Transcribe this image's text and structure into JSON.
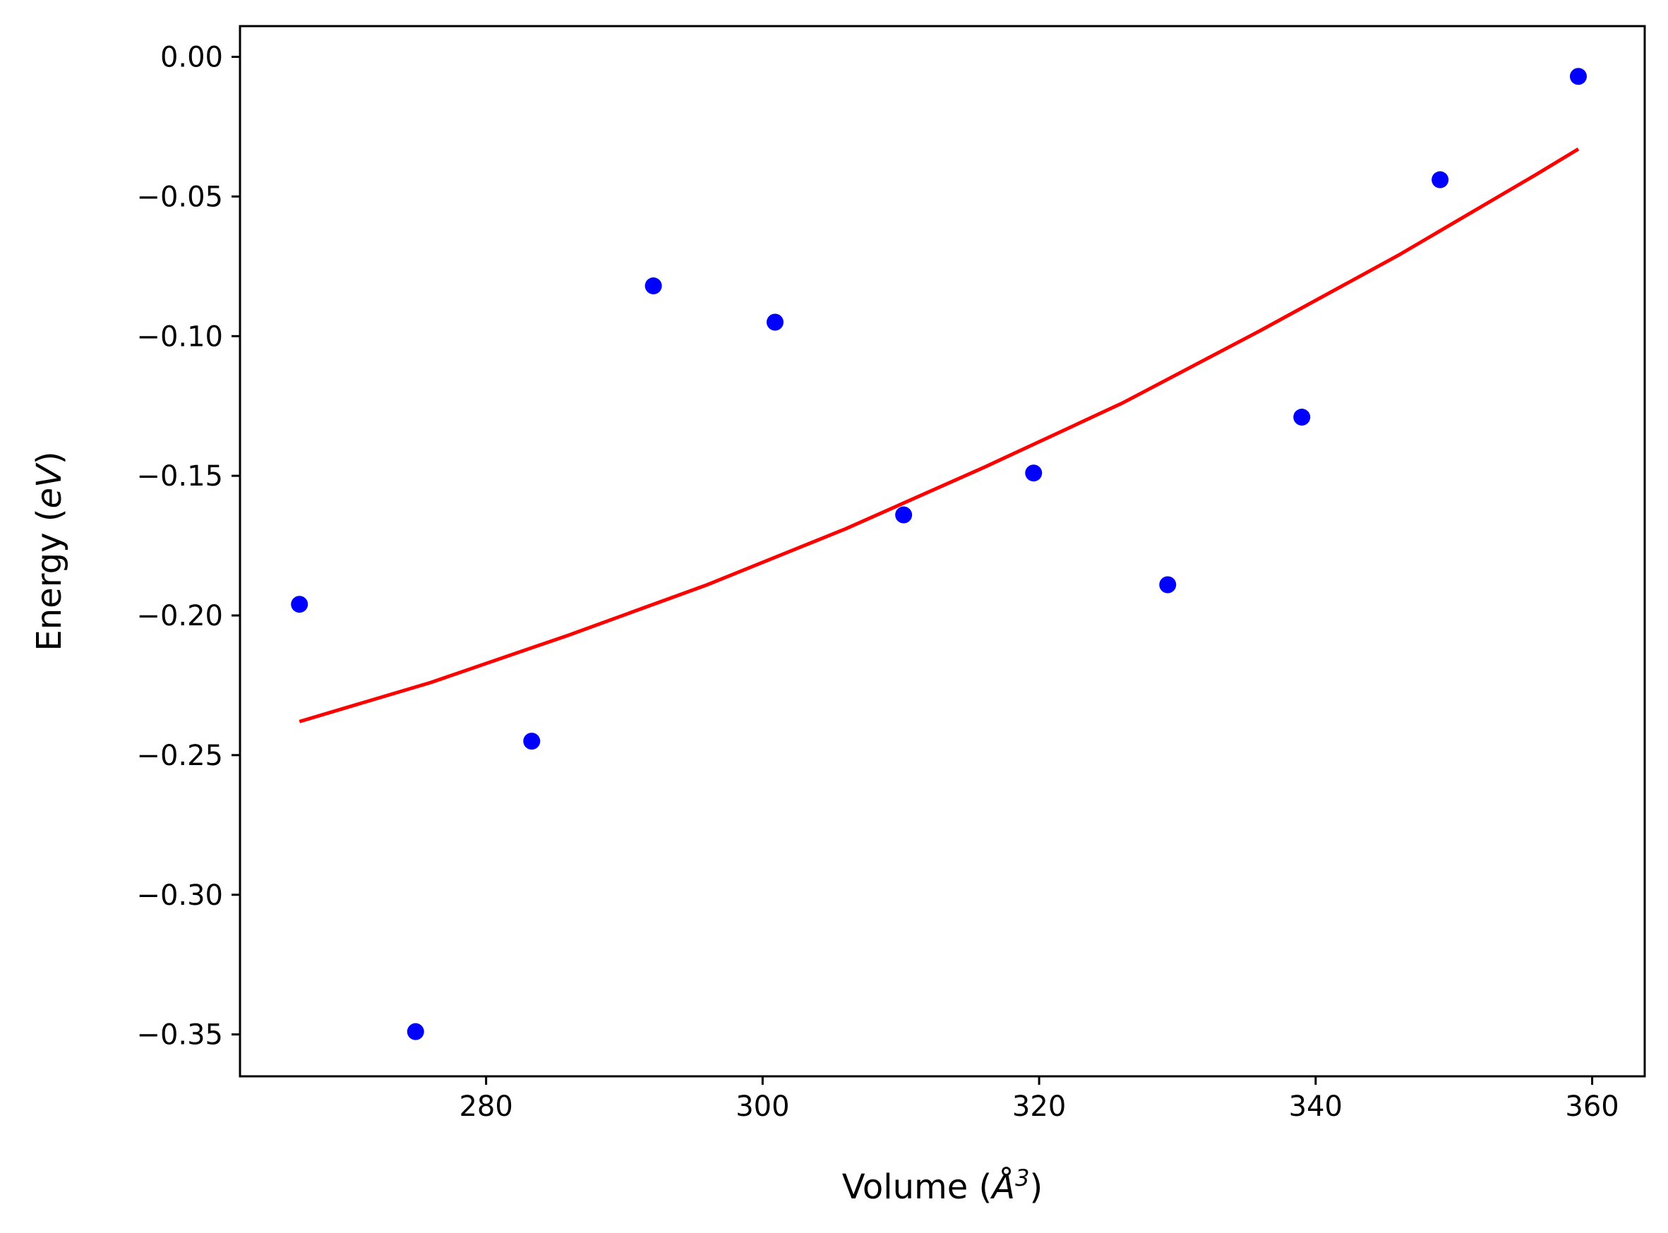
{
  "chart_data": {
    "type": "scatter",
    "xlabel": "Volume (Å³)",
    "ylabel": "Energy (eV)",
    "xlabel_parts": {
      "pre": "Volume (",
      "sym": "Å",
      "sup": "3",
      "post": ")"
    },
    "ylabel_parts": {
      "pre": "Energy (",
      "unit": "eV",
      "post": ")"
    },
    "xlim": [
      262.2,
      363.8
    ],
    "ylim": [
      -0.365,
      0.011
    ],
    "x_ticks": [
      280,
      300,
      320,
      340,
      360
    ],
    "y_ticks": [
      0.0,
      -0.05,
      -0.1,
      -0.15,
      -0.2,
      -0.25,
      -0.3,
      -0.35
    ],
    "x_tick_labels": [
      "280",
      "300",
      "320",
      "340",
      "360"
    ],
    "y_tick_labels": [
      "0.00",
      "−0.05",
      "−0.10",
      "−0.15",
      "−0.20",
      "−0.25",
      "−0.30",
      "−0.35"
    ],
    "grid": false,
    "series": [
      {
        "type": "scatter",
        "color": "#0000ff",
        "x": [
          266.5,
          274.9,
          283.3,
          292.1,
          300.9,
          310.2,
          319.6,
          329.3,
          339.0,
          349.0,
          359.0
        ],
        "y": [
          -0.196,
          -0.349,
          -0.245,
          -0.082,
          -0.095,
          -0.164,
          -0.149,
          -0.189,
          -0.129,
          -0.044,
          -0.007
        ]
      },
      {
        "type": "line",
        "color": "#ff0000",
        "x": [
          266.5,
          276,
          286,
          296,
          306,
          316,
          326,
          336,
          346,
          356,
          359.0
        ],
        "y": [
          -0.238,
          -0.224,
          -0.207,
          -0.189,
          -0.169,
          -0.147,
          -0.124,
          -0.098,
          -0.071,
          -0.042,
          -0.033
        ]
      }
    ]
  }
}
